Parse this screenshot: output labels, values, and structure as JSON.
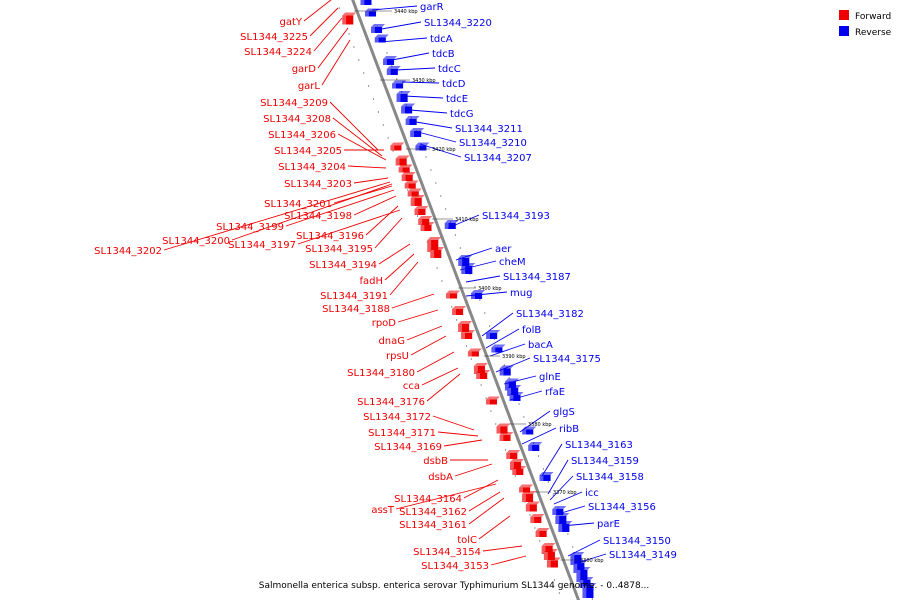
{
  "caption": "Salmonella enterica subsp. enterica serovar Typhimurium SL1344 genome. - 0..4878...",
  "legend": [
    {
      "label": "Forward",
      "color": "#ee0000"
    },
    {
      "label": "Reverse",
      "color": "#0000ee"
    }
  ],
  "colors": {
    "forward": "#ee0000",
    "reverse": "#0000ee",
    "backbone": "#888888"
  },
  "kbp_marks": [
    "3440 kbp",
    "3430 kbp",
    "3420 kbp",
    "3410 kbp",
    "3400 kbp",
    "3390 kbp",
    "3380 kbp",
    "3370 kbp",
    "3360 kbp"
  ],
  "reverse_genes": [
    "garR",
    "SL1344_3220",
    "tdcA",
    "tdcB",
    "tdcC",
    "tdcD",
    "tdcE",
    "tdcG",
    "SL1344_3211",
    "SL1344_3210",
    "SL1344_3207",
    "SL1344_3193",
    "aer",
    "cheM",
    "SL1344_3187",
    "mug",
    "SL1344_3182",
    "folB",
    "bacA",
    "SL1344_3175",
    "glnE",
    "rfaE",
    "glgS",
    "ribB",
    "SL1344_3163",
    "SL1344_3159",
    "SL1344_3158",
    "icc",
    "SL1344_3156",
    "parE",
    "SL1344_3150",
    "SL1344_3149"
  ],
  "forward_genes": [
    "gatY",
    "SL1344_3225",
    "SL1344_3224",
    "garD",
    "garL",
    "SL1344_3209",
    "SL1344_3208",
    "SL1344_3206",
    "SL1344_3205",
    "SL1344_3204",
    "SL1344_3203",
    "SL1344_3201",
    "SL1344_3198",
    "SL1344_3199",
    "SL1344_3196",
    "SL1344_3200",
    "SL1344_3197",
    "SL1344_3195",
    "SL1344_3202",
    "SL1344_3194",
    "fadH",
    "SL1344_3191",
    "SL1344_3188",
    "rpoD",
    "dnaG",
    "rpsU",
    "SL1344_3180",
    "cca",
    "SL1344_3176",
    "SL1344_3172",
    "SL1344_3171",
    "SL1344_3169",
    "dsbB",
    "dsbA",
    "SL1344_3164",
    "assT",
    "SL1344_3162",
    "SL1344_3161",
    "tolC",
    "SL1344_3154",
    "SL1344_3153"
  ]
}
